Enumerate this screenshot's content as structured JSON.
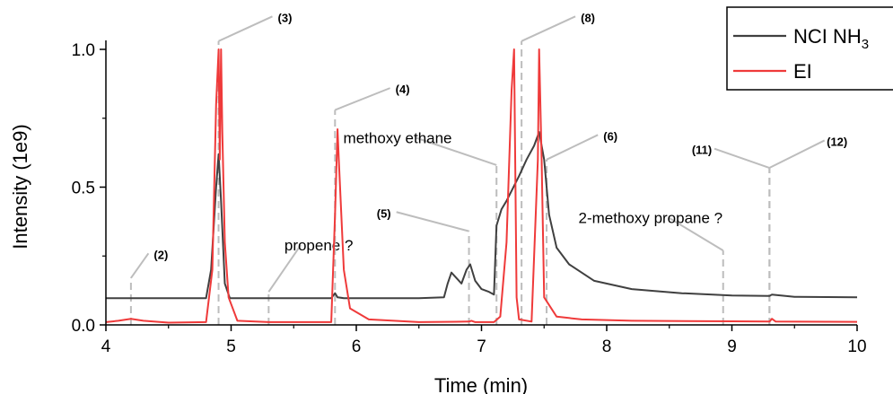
{
  "chart_data": {
    "type": "line",
    "xlabel": "Time (min)",
    "ylabel": "Intensity (1e9)",
    "xlim": [
      4,
      10
    ],
    "ylim": [
      0,
      1.0
    ],
    "xticks": [
      "4",
      "5",
      "6",
      "7",
      "8",
      "9",
      "10"
    ],
    "yticks": [
      "0.0",
      "0.5",
      "1.0"
    ],
    "legend_position": "top-right",
    "series": [
      {
        "name": "NCI NH3",
        "color": "#404040",
        "x": [
          4.0,
          4.5,
          4.8,
          4.84,
          4.88,
          4.9,
          4.92,
          4.95,
          4.99,
          5.3,
          5.8,
          5.83,
          5.85,
          5.9,
          6.5,
          6.7,
          6.73,
          6.76,
          6.8,
          6.84,
          6.88,
          6.91,
          6.95,
          7.0,
          7.06,
          7.1,
          7.12,
          7.16,
          7.2,
          7.3,
          7.36,
          7.42,
          7.46,
          7.5,
          7.54,
          7.6,
          7.7,
          7.9,
          8.2,
          8.6,
          9.0,
          9.3,
          9.32,
          9.5,
          10.0
        ],
        "y": [
          0.097,
          0.097,
          0.097,
          0.2,
          0.5,
          0.62,
          0.45,
          0.15,
          0.097,
          0.097,
          0.097,
          0.115,
          0.1,
          0.097,
          0.097,
          0.1,
          0.15,
          0.19,
          0.17,
          0.15,
          0.2,
          0.22,
          0.16,
          0.13,
          0.12,
          0.11,
          0.36,
          0.42,
          0.45,
          0.54,
          0.6,
          0.65,
          0.7,
          0.6,
          0.4,
          0.28,
          0.22,
          0.16,
          0.13,
          0.115,
          0.107,
          0.105,
          0.11,
          0.102,
          0.1
        ]
      },
      {
        "name": "EI",
        "color": "#ef3a3a",
        "x": [
          4.0,
          4.1,
          4.2,
          4.3,
          4.5,
          4.8,
          4.85,
          4.88,
          4.9,
          4.91,
          4.92,
          4.93,
          4.95,
          4.98,
          5.05,
          5.3,
          5.8,
          5.83,
          5.85,
          5.86,
          5.9,
          5.95,
          6.1,
          6.5,
          6.9,
          6.92,
          6.95,
          7.1,
          7.15,
          7.2,
          7.24,
          7.26,
          7.28,
          7.3,
          7.4,
          7.45,
          7.46,
          7.48,
          7.5,
          7.6,
          7.8,
          8.2,
          9.0,
          9.3,
          9.32,
          9.35,
          10.0
        ],
        "y": [
          0.01,
          0.015,
          0.022,
          0.015,
          0.008,
          0.01,
          0.2,
          0.8,
          1.0,
          0.6,
          1.0,
          0.7,
          0.3,
          0.1,
          0.015,
          0.01,
          0.01,
          0.4,
          0.71,
          0.6,
          0.2,
          0.06,
          0.02,
          0.01,
          0.012,
          0.015,
          0.01,
          0.01,
          0.03,
          0.3,
          0.85,
          1.0,
          0.1,
          0.02,
          0.012,
          0.6,
          1.0,
          0.6,
          0.1,
          0.03,
          0.02,
          0.015,
          0.013,
          0.012,
          0.022,
          0.012,
          0.011
        ]
      }
    ],
    "annotations": [
      {
        "text": "(2)",
        "x": 4.2,
        "ybase": 0.0,
        "ytop": 0.17,
        "label_x": 4.44,
        "label_y": 0.24,
        "kind": "peak"
      },
      {
        "text": "(3)",
        "x": 4.9,
        "ybase": 0.0,
        "ytop": 1.03,
        "label_x": 5.43,
        "label_y": 1.1,
        "kind": "peak"
      },
      {
        "text": "propene ?",
        "x": 5.3,
        "ybase": 0.0,
        "ytop": 0.12,
        "label_x": 5.7,
        "label_y": 0.27,
        "kind": "note"
      },
      {
        "text": "(4)",
        "x": 5.83,
        "ybase": 0.0,
        "ytop": 0.78,
        "label_x": 6.37,
        "label_y": 0.84,
        "kind": "peak"
      },
      {
        "text": "methoxy ethane",
        "x": 7.12,
        "ybase": 0.0,
        "ytop": 0.58,
        "label_x": 6.33,
        "label_y": 0.66,
        "kind": "note"
      },
      {
        "text": "(5)",
        "x": 6.9,
        "ybase": 0.0,
        "ytop": 0.34,
        "label_x": 6.22,
        "label_y": 0.39,
        "kind": "peak"
      },
      {
        "text": "(8)",
        "x": 7.32,
        "ybase": 0.0,
        "ytop": 1.03,
        "label_x": 7.85,
        "label_y": 1.1,
        "kind": "peak"
      },
      {
        "text": "(6)",
        "x": 7.52,
        "ybase": 0.0,
        "ytop": 0.6,
        "label_x": 8.03,
        "label_y": 0.67,
        "kind": "peak"
      },
      {
        "text": "2-methoxy propane ?",
        "x": 8.93,
        "ybase": 0.0,
        "ytop": 0.27,
        "label_x": 8.35,
        "label_y": 0.37,
        "kind": "note"
      },
      {
        "text": "(11)",
        "x": 9.3,
        "ybase": 0.0,
        "ytop": 0.57,
        "label_x": 8.76,
        "label_y": 0.62,
        "kind": "peak"
      },
      {
        "text": "(12)",
        "x": 9.3,
        "ybase": 0.0,
        "ytop": 0.57,
        "label_x": 9.84,
        "label_y": 0.65,
        "kind": "peak"
      }
    ]
  }
}
